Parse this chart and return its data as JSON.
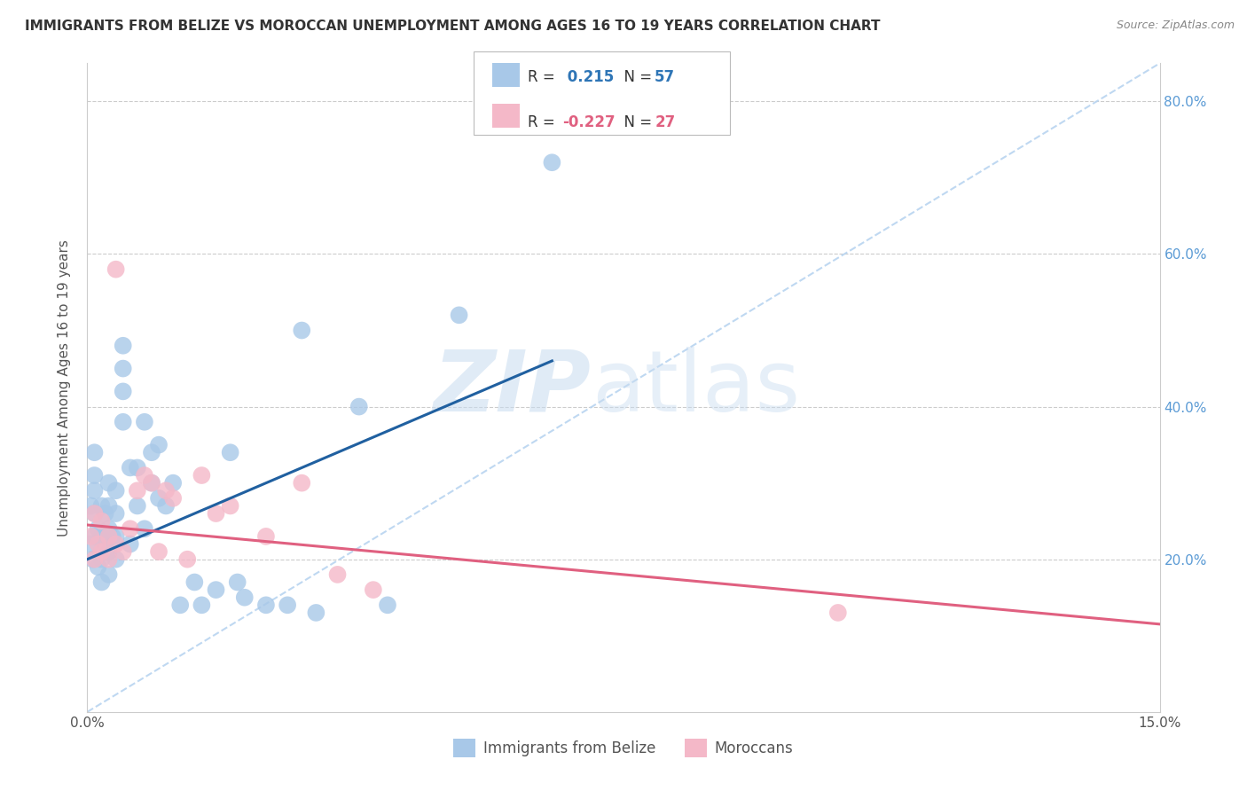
{
  "title": "IMMIGRANTS FROM BELIZE VS MOROCCAN UNEMPLOYMENT AMONG AGES 16 TO 19 YEARS CORRELATION CHART",
  "source": "Source: ZipAtlas.com",
  "ylabel": "Unemployment Among Ages 16 to 19 years",
  "xlim": [
    0.0,
    0.15
  ],
  "ylim": [
    0.0,
    0.85
  ],
  "xticks": [
    0.0,
    0.03,
    0.06,
    0.09,
    0.12,
    0.15
  ],
  "xticklabels": [
    "0.0%",
    "",
    "",
    "",
    "",
    "15.0%"
  ],
  "yticks": [
    0.0,
    0.2,
    0.4,
    0.6,
    0.8
  ],
  "yticklabels": [
    "",
    "20.0%",
    "40.0%",
    "60.0%",
    "80.0%"
  ],
  "blue_color": "#A8C8E8",
  "pink_color": "#F4B8C8",
  "line_blue": "#2060A0",
  "line_pink": "#E06080",
  "dashed_line_color": "#B8D4F0",
  "blue_line_x": [
    0.0,
    0.065
  ],
  "blue_line_y": [
    0.2,
    0.46
  ],
  "pink_line_x": [
    0.0,
    0.15
  ],
  "pink_line_y": [
    0.245,
    0.115
  ],
  "belize_x": [
    0.0005,
    0.0005,
    0.0008,
    0.001,
    0.001,
    0.001,
    0.001,
    0.001,
    0.0015,
    0.0015,
    0.002,
    0.002,
    0.002,
    0.002,
    0.0025,
    0.0025,
    0.003,
    0.003,
    0.003,
    0.003,
    0.003,
    0.0035,
    0.004,
    0.004,
    0.004,
    0.004,
    0.005,
    0.005,
    0.005,
    0.005,
    0.006,
    0.006,
    0.007,
    0.007,
    0.008,
    0.008,
    0.009,
    0.009,
    0.01,
    0.01,
    0.011,
    0.012,
    0.013,
    0.015,
    0.016,
    0.018,
    0.02,
    0.021,
    0.022,
    0.025,
    0.028,
    0.03,
    0.032,
    0.038,
    0.042,
    0.052,
    0.065
  ],
  "belize_y": [
    0.22,
    0.27,
    0.2,
    0.23,
    0.26,
    0.29,
    0.31,
    0.34,
    0.19,
    0.24,
    0.17,
    0.2,
    0.23,
    0.27,
    0.22,
    0.26,
    0.18,
    0.21,
    0.24,
    0.27,
    0.3,
    0.23,
    0.2,
    0.23,
    0.26,
    0.29,
    0.38,
    0.42,
    0.45,
    0.48,
    0.22,
    0.32,
    0.27,
    0.32,
    0.24,
    0.38,
    0.3,
    0.34,
    0.28,
    0.35,
    0.27,
    0.3,
    0.14,
    0.17,
    0.14,
    0.16,
    0.34,
    0.17,
    0.15,
    0.14,
    0.14,
    0.5,
    0.13,
    0.4,
    0.14,
    0.52,
    0.72
  ],
  "moroccan_x": [
    0.0005,
    0.001,
    0.001,
    0.0015,
    0.002,
    0.002,
    0.003,
    0.003,
    0.004,
    0.004,
    0.005,
    0.006,
    0.007,
    0.008,
    0.009,
    0.01,
    0.011,
    0.012,
    0.014,
    0.016,
    0.018,
    0.02,
    0.025,
    0.03,
    0.035,
    0.04,
    0.105
  ],
  "moroccan_y": [
    0.23,
    0.2,
    0.26,
    0.22,
    0.21,
    0.25,
    0.2,
    0.23,
    0.22,
    0.58,
    0.21,
    0.24,
    0.29,
    0.31,
    0.3,
    0.21,
    0.29,
    0.28,
    0.2,
    0.31,
    0.26,
    0.27,
    0.23,
    0.3,
    0.18,
    0.16,
    0.13
  ]
}
